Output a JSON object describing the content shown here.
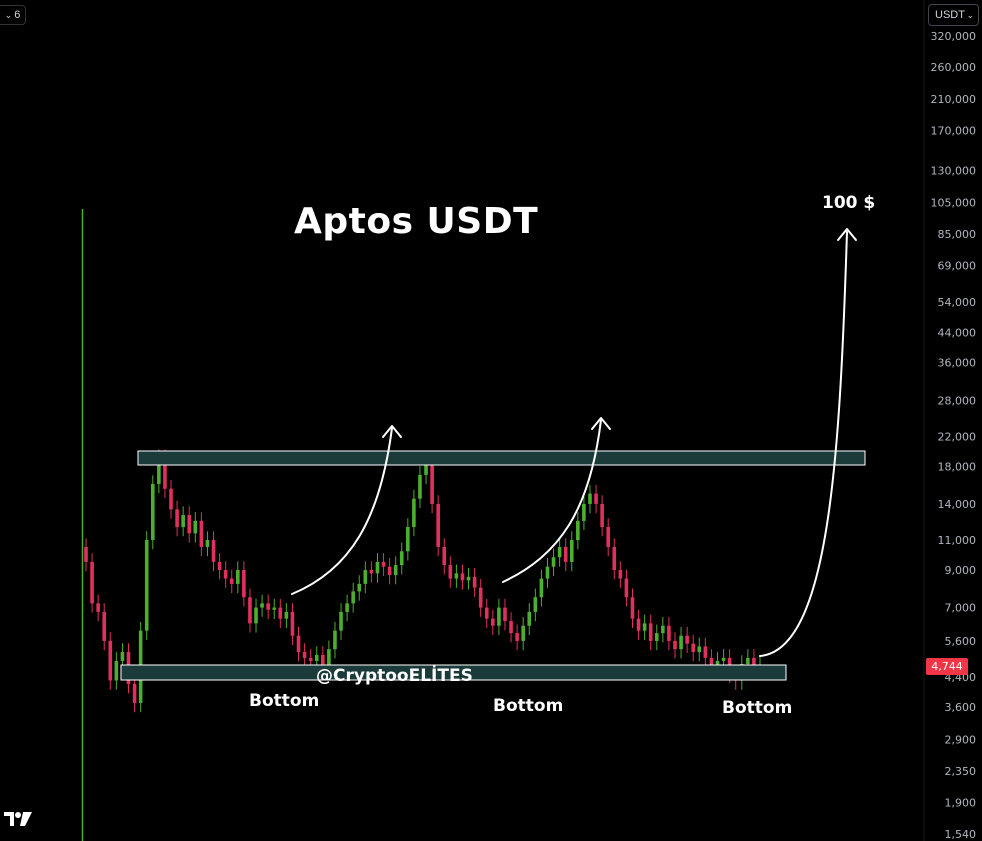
{
  "toolbar": {
    "interval": "6",
    "currency": "USDT"
  },
  "annotations": {
    "title": "Aptos USDT",
    "target": "100 $",
    "bottoms": [
      "Bottom",
      "Bottom",
      "Bottom"
    ],
    "watermark": "@CryptooELİTES"
  },
  "colors": {
    "up": "#4caf2f",
    "down": "#e0305e",
    "zone_fill": "#1b3a3a",
    "zone_stroke": "#ffffff",
    "price_badge": "#f23645"
  },
  "chart_data": {
    "type": "candlestick",
    "title": "Aptos USDT",
    "price_scale": "log",
    "current_price": "4,744",
    "y_ticks": [
      "320,000",
      "260,000",
      "210,000",
      "170,000",
      "130,000",
      "105,000",
      "85,000",
      "69,000",
      "54,000",
      "44,000",
      "36,000",
      "28,000",
      "22,000",
      "18,000",
      "14,000",
      "11,000",
      "9,000",
      "7,000",
      "5,600",
      "4,400",
      "3,600",
      "2,900",
      "2,350",
      "1,900",
      "1,540"
    ],
    "y_tick_values": [
      320000,
      260000,
      210000,
      170000,
      130000,
      105000,
      85000,
      69000,
      54000,
      44000,
      36000,
      28000,
      22000,
      18000,
      14000,
      11000,
      9000,
      7000,
      5600,
      4400,
      3600,
      2900,
      2350,
      1900,
      1540
    ],
    "candles_close": [
      9.5,
      7.2,
      6.8,
      5.6,
      4.3,
      4.9,
      5.2,
      4.2,
      3.7,
      6.0,
      11.0,
      16.0,
      19.0,
      15.5,
      13.5,
      12.0,
      13.0,
      11.5,
      12.5,
      10.5,
      11.0,
      9.5,
      9.0,
      8.5,
      8.2,
      9.0,
      7.5,
      6.3,
      7.0,
      7.2,
      6.9,
      7.0,
      6.5,
      6.8,
      5.8,
      5.2,
      5.0,
      4.9,
      5.1,
      4.7,
      5.3,
      6.0,
      6.8,
      7.2,
      7.8,
      8.2,
      9.0,
      8.8,
      9.5,
      9.2,
      8.7,
      9.3,
      10.2,
      12.0,
      14.5,
      17.0,
      18.5,
      14.0,
      10.5,
      9.3,
      8.5,
      8.8,
      8.4,
      8.6,
      8.0,
      7.0,
      6.5,
      6.2,
      7.0,
      6.4,
      5.9,
      5.6,
      6.2,
      6.8,
      7.5,
      8.5,
      9.2,
      9.8,
      10.5,
      9.5,
      11.0,
      12.5,
      14.0,
      15.0,
      14.0,
      12.0,
      10.5,
      9.0,
      8.5,
      7.5,
      6.5,
      6.0,
      6.3,
      5.6,
      5.9,
      6.2,
      5.6,
      5.3,
      5.8,
      5.5,
      5.2,
      5.4,
      5.0,
      4.7,
      4.9,
      5.0,
      4.5,
      4.3,
      4.8,
      5.0,
      4.6,
      4.744
    ]
  }
}
